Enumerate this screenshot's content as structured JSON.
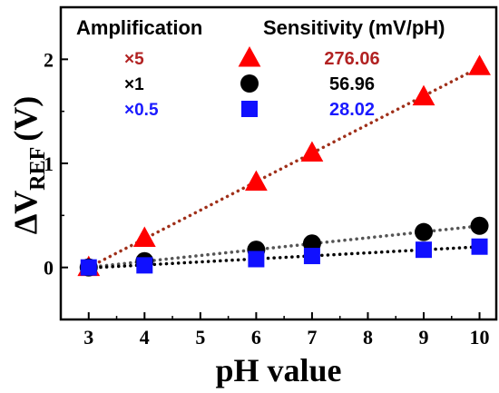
{
  "chart_data": {
    "type": "scatter",
    "xlabel": "pH value",
    "ylabel_main": "ΔV",
    "ylabel_sub": "REF",
    "ylabel_unit": "(V)",
    "x_ticks": [
      "3",
      "4",
      "5",
      "6",
      "7",
      "8",
      "9",
      "10"
    ],
    "y_ticks": [
      "0",
      "1",
      "2"
    ],
    "xlim": [
      2.5,
      10.3
    ],
    "ylim": [
      -0.5,
      2.5
    ],
    "legend": {
      "header_left": "Amplification",
      "header_right": "Sensitivity (mV/pH)",
      "position": "top-left"
    },
    "series": [
      {
        "name": "×5",
        "sensitivity": "276.06",
        "marker": "triangle",
        "color": "#ff0000",
        "label_color": "#b22222",
        "fit_color": "#a0301a",
        "x": [
          3,
          4,
          6,
          7,
          9,
          10
        ],
        "y": [
          0.0,
          0.28,
          0.82,
          1.1,
          1.64,
          1.93
        ]
      },
      {
        "name": "×1",
        "sensitivity": "56.96",
        "marker": "circle",
        "color": "#000000",
        "label_color": "#000000",
        "fit_color": "#555555",
        "x": [
          3,
          4,
          6,
          7,
          9,
          10
        ],
        "y": [
          0.0,
          0.06,
          0.17,
          0.23,
          0.34,
          0.4
        ]
      },
      {
        "name": "×0.5",
        "sensitivity": "28.02",
        "marker": "square",
        "color": "#1010ff",
        "label_color": "#1a1aff",
        "fit_color": "#000000",
        "x": [
          3,
          4,
          6,
          7,
          9,
          10
        ],
        "y": [
          0.0,
          0.02,
          0.08,
          0.11,
          0.17,
          0.2
        ]
      }
    ]
  }
}
